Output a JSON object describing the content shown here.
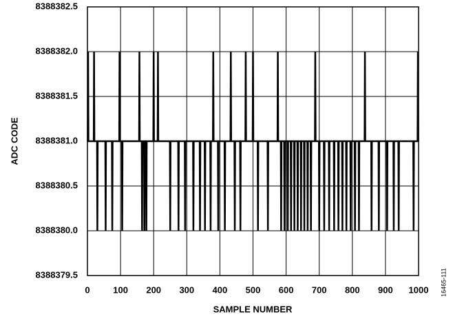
{
  "chart_data": {
    "type": "line",
    "x_label": "SAMPLE NUMBER",
    "y_label": "ADC CODE",
    "note": "16465-111",
    "xlim": [
      0,
      1000
    ],
    "xticks": [
      0,
      100,
      200,
      300,
      400,
      500,
      600,
      700,
      800,
      900,
      1000
    ],
    "ylim": [
      8388379.5,
      8388382.5
    ],
    "yticks": [
      8388379.5,
      {
        "value": 8388380,
        "label": "8388380.0"
      },
      8388380.5,
      {
        "value": 8388381,
        "label": "8388381.0"
      },
      8388381.5,
      {
        "value": 8388382,
        "label": "8388382.0"
      },
      8388382.5
    ],
    "grid": true,
    "series": [
      {
        "color": "#000000",
        "x": [
          1,
          2,
          3,
          19,
          20,
          21,
          29,
          30,
          31,
          54,
          55,
          56,
          74,
          75,
          76,
          96,
          97,
          98,
          104,
          105,
          106,
          156,
          157,
          158,
          164,
          165,
          166,
          171,
          172,
          173,
          177,
          178,
          179,
          199,
          200,
          201,
          212,
          213,
          214,
          249,
          250,
          251,
          274,
          275,
          276,
          294,
          295,
          296,
          319,
          320,
          321,
          339,
          340,
          341,
          354,
          355,
          356,
          371,
          372,
          373,
          379,
          380,
          381,
          394,
          395,
          396,
          414,
          415,
          416,
          432,
          433,
          434,
          444,
          445,
          446,
          461,
          462,
          463,
          477,
          478,
          479,
          499,
          500,
          501,
          514,
          515,
          516,
          544,
          545,
          546,
          574,
          575,
          576,
          584,
          585,
          586,
          594,
          595,
          596,
          604,
          605,
          606,
          614,
          615,
          616,
          624,
          625,
          626,
          634,
          635,
          636,
          644,
          645,
          646,
          654,
          655,
          656,
          664,
          665,
          666,
          674,
          675,
          676,
          687,
          688,
          689,
          699,
          700,
          701,
          714,
          715,
          716,
          729,
          730,
          731,
          744,
          745,
          746,
          757,
          758,
          759,
          769,
          770,
          771,
          781,
          782,
          783,
          794,
          795,
          796,
          807,
          808,
          809,
          819,
          820,
          821,
          837,
          838,
          839,
          857,
          858,
          859,
          879,
          880,
          881,
          904,
          905,
          906,
          924,
          925,
          926,
          939,
          940,
          941,
          984,
          985,
          986,
          997,
          998,
          999
        ],
        "values": [
          8388381,
          8388382,
          8388381,
          8388381,
          8388382,
          8388381,
          8388381,
          8388380,
          8388381,
          8388381,
          8388380,
          8388381,
          8388381,
          8388380,
          8388381,
          8388381,
          8388382,
          8388381,
          8388381,
          8388380,
          8388381,
          8388381,
          8388382,
          8388381,
          8388381,
          8388380,
          8388381,
          8388381,
          8388380,
          8388381,
          8388381,
          8388380,
          8388381,
          8388381,
          8388382,
          8388381,
          8388381,
          8388382,
          8388381,
          8388381,
          8388380,
          8388381,
          8388381,
          8388380,
          8388381,
          8388381,
          8388380,
          8388381,
          8388381,
          8388380,
          8388381,
          8388381,
          8388380,
          8388381,
          8388381,
          8388380,
          8388381,
          8388381,
          8388380,
          8388381,
          8388381,
          8388382,
          8388381,
          8388381,
          8388380,
          8388381,
          8388381,
          8388380,
          8388381,
          8388381,
          8388382,
          8388381,
          8388381,
          8388380,
          8388381,
          8388381,
          8388380,
          8388381,
          8388381,
          8388382,
          8388381,
          8388381,
          8388382,
          8388381,
          8388381,
          8388380,
          8388381,
          8388381,
          8388380,
          8388381,
          8388381,
          8388382,
          8388381,
          8388381,
          8388380,
          8388381,
          8388381,
          8388380,
          8388381,
          8388381,
          8388380,
          8388381,
          8388381,
          8388380,
          8388381,
          8388381,
          8388380,
          8388381,
          8388381,
          8388380,
          8388381,
          8388381,
          8388380,
          8388381,
          8388381,
          8388380,
          8388381,
          8388381,
          8388380,
          8388381,
          8388381,
          8388380,
          8388381,
          8388381,
          8388382,
          8388381,
          8388381,
          8388380,
          8388381,
          8388381,
          8388380,
          8388381,
          8388381,
          8388380,
          8388381,
          8388381,
          8388380,
          8388381,
          8388381,
          8388380,
          8388381,
          8388381,
          8388380,
          8388381,
          8388381,
          8388380,
          8388381,
          8388381,
          8388380,
          8388381,
          8388381,
          8388380,
          8388381,
          8388381,
          8388380,
          8388381,
          8388381,
          8388382,
          8388381,
          8388381,
          8388380,
          8388381,
          8388381,
          8388380,
          8388381,
          8388381,
          8388380,
          8388381,
          8388381,
          8388380,
          8388381,
          8388381,
          8388380,
          8388381,
          8388381,
          8388380,
          8388381,
          8388381,
          8388382,
          8388381
        ]
      }
    ]
  }
}
